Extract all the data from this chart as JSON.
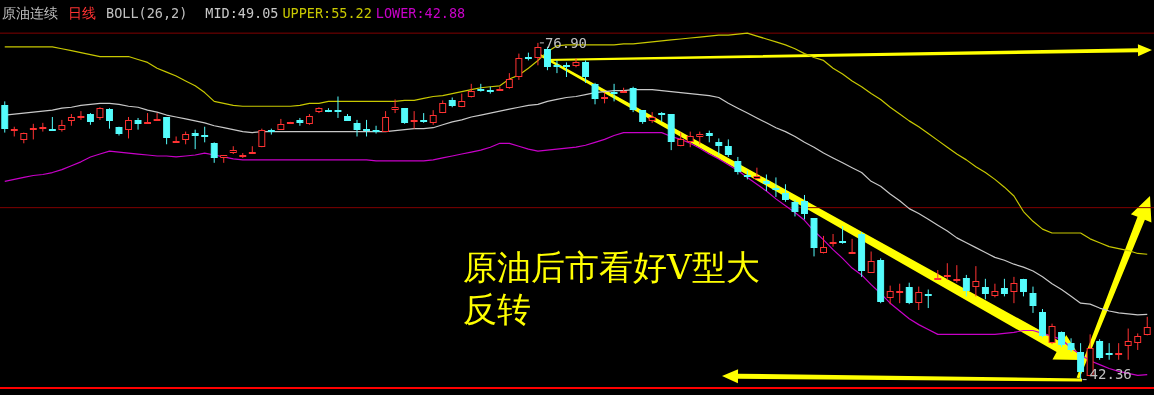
{
  "chart_data": {
    "type": "candlestick",
    "title": "原油连续",
    "subtitle": "日线",
    "legend_title": "BOLL(26,2)",
    "ylim": [
      41.5,
      81.3
    ],
    "categories": [
      null,
      null,
      null,
      null,
      null,
      null,
      null,
      null,
      null,
      null,
      null,
      null,
      null,
      null,
      null,
      null,
      null,
      null,
      null,
      null,
      null,
      null,
      null,
      null,
      null,
      null,
      null,
      null,
      null,
      null,
      null,
      null,
      null,
      null,
      null,
      null,
      null,
      null,
      null,
      null,
      null,
      null,
      null,
      null,
      null,
      null,
      null,
      null,
      null,
      null,
      null,
      null,
      null,
      null,
      null,
      null,
      null,
      null,
      null,
      null,
      null,
      null,
      null,
      null,
      null,
      null,
      null,
      null,
      null,
      null,
      null,
      null,
      null,
      null,
      null,
      null,
      null,
      null,
      null,
      null,
      null,
      null,
      null,
      null,
      null,
      null,
      null,
      null,
      null,
      null,
      null,
      null,
      null,
      null,
      null,
      null,
      null,
      null,
      null,
      null,
      null,
      null,
      null,
      null,
      null,
      null,
      null,
      null,
      null,
      null,
      null,
      null,
      null,
      null,
      null,
      null,
      null,
      null,
      null,
      null,
      null
    ],
    "ohlc": [
      [
        70.5,
        70.9,
        67.7,
        68.1
      ],
      [
        68.05,
        68.3,
        67.3,
        68.1
      ],
      [
        66.9,
        67.7,
        66.6,
        67.7
      ],
      [
        68.15,
        68.6,
        67.0,
        68.2
      ],
      [
        68.25,
        68.7,
        67.8,
        68.3
      ],
      [
        68.1,
        69.3,
        68.0,
        68.05
      ],
      [
        68.0,
        69.0,
        67.8,
        68.5
      ],
      [
        68.9,
        69.6,
        68.4,
        69.3
      ],
      [
        69.35,
        69.9,
        69.0,
        69.4
      ],
      [
        69.6,
        69.7,
        68.5,
        68.8
      ],
      [
        69.2,
        70.3,
        69.0,
        70.2
      ],
      [
        70.1,
        70.2,
        68.1,
        68.9
      ],
      [
        68.3,
        68.3,
        67.4,
        67.6
      ],
      [
        68.0,
        69.3,
        67.1,
        69.0
      ],
      [
        69.0,
        69.2,
        68.0,
        68.6
      ],
      [
        68.7,
        69.7,
        68.7,
        68.8
      ],
      [
        69.05,
        69.7,
        69.0,
        69.1
      ],
      [
        69.3,
        69.3,
        66.5,
        67.1
      ],
      [
        66.75,
        67.3,
        66.7,
        66.8
      ],
      [
        66.9,
        67.8,
        66.5,
        67.6
      ],
      [
        67.7,
        68.0,
        66.0,
        67.4
      ],
      [
        67.5,
        68.3,
        66.7,
        67.2
      ],
      [
        66.6,
        66.7,
        64.6,
        65.1
      ],
      [
        65.1,
        65.4,
        64.6,
        65.4
      ],
      [
        65.6,
        66.3,
        65.5,
        65.9
      ],
      [
        65.35,
        65.6,
        65.1,
        65.4
      ],
      [
        65.5,
        66.3,
        65.5,
        65.7
      ],
      [
        66.2,
        68.1,
        66.2,
        68.0
      ],
      [
        68.0,
        68.1,
        67.5,
        67.95
      ],
      [
        68.0,
        69.1,
        68.0,
        68.6
      ],
      [
        68.75,
        68.8,
        68.6,
        68.8
      ],
      [
        69.0,
        69.2,
        68.4,
        68.7
      ],
      [
        68.6,
        69.6,
        68.5,
        69.4
      ],
      [
        69.8,
        70.3,
        69.7,
        70.2
      ],
      [
        70.0,
        70.2,
        69.8,
        69.95
      ],
      [
        70.0,
        71.4,
        69.2,
        69.8
      ],
      [
        69.4,
        69.6,
        68.9,
        68.9
      ],
      [
        68.7,
        69.0,
        67.3,
        68.0
      ],
      [
        68.1,
        69.0,
        67.3,
        68.05
      ],
      [
        68.0,
        68.4,
        67.6,
        67.95
      ],
      [
        67.8,
        69.9,
        67.8,
        69.3
      ],
      [
        70.0,
        71.1,
        69.7,
        70.3
      ],
      [
        70.2,
        70.2,
        68.6,
        68.7
      ],
      [
        68.95,
        69.9,
        68.1,
        69.0
      ],
      [
        69.0,
        69.7,
        68.7,
        68.95
      ],
      [
        68.7,
        70.0,
        68.5,
        69.5
      ],
      [
        69.7,
        71.0,
        69.7,
        70.7
      ],
      [
        71.0,
        71.3,
        70.3,
        70.4
      ],
      [
        70.3,
        71.7,
        70.3,
        70.9
      ],
      [
        71.3,
        72.7,
        71.3,
        72.0
      ],
      [
        72.2,
        72.7,
        71.9,
        72.15
      ],
      [
        72.1,
        72.4,
        71.7,
        72.05
      ],
      [
        72.1,
        72.4,
        72.0,
        72.2
      ],
      [
        72.3,
        73.8,
        72.2,
        73.2
      ],
      [
        73.4,
        75.8,
        73.1,
        75.3
      ],
      [
        75.5,
        75.9,
        75.1,
        75.45
      ],
      [
        75.3,
        76.9,
        74.6,
        76.5
      ],
      [
        76.3,
        76.5,
        74.1,
        74.4
      ],
      [
        74.65,
        75.1,
        73.8,
        74.6
      ],
      [
        74.6,
        74.9,
        73.4,
        74.55
      ],
      [
        74.5,
        75.3,
        74.4,
        74.9
      ],
      [
        74.9,
        75.1,
        72.8,
        73.4
      ],
      [
        72.7,
        72.8,
        70.6,
        71.1
      ],
      [
        71.2,
        71.8,
        70.7,
        71.4
      ],
      [
        71.9,
        72.7,
        70.9,
        71.85
      ],
      [
        71.8,
        72.3,
        71.8,
        72.0
      ],
      [
        72.3,
        72.4,
        69.8,
        70.0
      ],
      [
        70.0,
        70.0,
        68.6,
        68.8
      ],
      [
        68.9,
        69.8,
        68.7,
        69.3
      ],
      [
        69.7,
        69.8,
        68.8,
        69.65
      ],
      [
        69.6,
        69.6,
        65.9,
        66.7
      ],
      [
        66.3,
        67.7,
        66.3,
        67.0
      ],
      [
        66.7,
        67.8,
        66.2,
        67.3
      ],
      [
        67.2,
        67.8,
        66.5,
        67.6
      ],
      [
        67.7,
        67.9,
        66.7,
        67.3
      ],
      [
        66.7,
        67.1,
        65.4,
        66.3
      ],
      [
        66.3,
        67.0,
        65.2,
        65.4
      ],
      [
        64.8,
        65.2,
        63.4,
        63.7
      ],
      [
        63.4,
        63.8,
        62.9,
        63.35
      ],
      [
        62.9,
        64.1,
        62.9,
        63.2
      ],
      [
        62.7,
        63.4,
        61.7,
        62.4
      ],
      [
        62.0,
        63.1,
        61.1,
        61.95
      ],
      [
        61.5,
        62.4,
        60.6,
        60.8
      ],
      [
        60.6,
        60.8,
        59.1,
        59.6
      ],
      [
        60.7,
        61.3,
        58.8,
        59.3
      ],
      [
        58.9,
        58.9,
        55.0,
        55.9
      ],
      [
        55.3,
        57.1,
        55.3,
        56.0
      ],
      [
        56.3,
        57.3,
        56.0,
        56.5
      ],
      [
        56.6,
        58.1,
        56.3,
        56.55
      ],
      [
        55.35,
        56.8,
        55.3,
        55.4
      ],
      [
        57.3,
        57.5,
        52.9,
        53.5
      ],
      [
        53.3,
        55.5,
        53.3,
        54.5
      ],
      [
        54.6,
        54.8,
        50.2,
        50.3
      ],
      [
        50.7,
        52.0,
        50.1,
        51.4
      ],
      [
        51.35,
        52.2,
        50.2,
        51.4
      ],
      [
        51.9,
        52.3,
        50.1,
        50.2
      ],
      [
        50.2,
        51.9,
        49.5,
        51.3
      ],
      [
        51.1,
        51.6,
        49.7,
        51.05
      ],
      [
        52.6,
        53.6,
        52.6,
        52.8
      ],
      [
        53.05,
        54.3,
        52.6,
        53.1
      ],
      [
        52.65,
        54.1,
        52.3,
        52.7
      ],
      [
        52.8,
        53.1,
        50.9,
        51.5
      ],
      [
        51.9,
        54.0,
        50.9,
        52.5
      ],
      [
        51.9,
        52.7,
        50.6,
        51.1
      ],
      [
        50.9,
        52.2,
        50.8,
        51.4
      ],
      [
        51.8,
        52.7,
        50.9,
        51.1
      ],
      [
        51.3,
        52.9,
        50.2,
        52.3
      ],
      [
        52.7,
        52.7,
        50.9,
        51.3
      ],
      [
        51.2,
        51.9,
        49.2,
        49.9
      ],
      [
        49.3,
        49.6,
        46.7,
        46.8
      ],
      [
        46.1,
        48.1,
        46.0,
        47.9
      ],
      [
        47.2,
        47.3,
        45.7,
        45.9
      ],
      [
        46.1,
        46.6,
        45.2,
        45.4
      ],
      [
        45.2,
        46.1,
        42.36,
        43.1
      ],
      [
        42.7,
        47.0,
        42.7,
        45.6
      ],
      [
        46.3,
        46.5,
        44.4,
        44.6
      ],
      [
        45.1,
        46.1,
        44.4,
        45.05
      ],
      [
        45.05,
        46.1,
        44.4,
        45.1
      ],
      [
        45.8,
        47.6,
        44.4,
        46.3
      ],
      [
        46.1,
        47.1,
        45.4,
        46.8
      ],
      [
        46.9,
        48.8,
        46.9,
        47.8
      ]
    ],
    "series": [
      {
        "type": "line",
        "name": "MID:49.05",
        "color": "#c8c8c8",
        "values": [
          69.5,
          69.6,
          69.7,
          69.8,
          69.9,
          70.0,
          70.2,
          70.3,
          70.5,
          70.6,
          70.7,
          70.7,
          70.6,
          70.4,
          70.3,
          70.0,
          69.8,
          69.5,
          69.3,
          69.1,
          68.9,
          68.7,
          68.4,
          68.2,
          68.0,
          67.8,
          67.7,
          67.8,
          67.8,
          67.8,
          67.8,
          67.8,
          67.8,
          67.8,
          67.8,
          67.8,
          67.8,
          67.8,
          67.8,
          67.8,
          67.8,
          67.9,
          68.0,
          68.1,
          68.1,
          68.2,
          68.5,
          68.8,
          69.0,
          69.3,
          69.5,
          69.7,
          69.9,
          70.1,
          70.3,
          70.5,
          70.6,
          70.9,
          71.1,
          71.3,
          71.4,
          71.6,
          71.8,
          71.9,
          72.0,
          72.0,
          72.1,
          72.1,
          72.1,
          72.0,
          71.9,
          71.8,
          71.7,
          71.6,
          71.5,
          71.3,
          70.7,
          70.2,
          69.7,
          69.2,
          68.7,
          68.2,
          67.8,
          67.3,
          66.7,
          66.2,
          65.6,
          65.1,
          64.6,
          64.1,
          63.6,
          62.7,
          62.2,
          61.4,
          60.7,
          59.9,
          59.4,
          58.8,
          58.2,
          57.6,
          56.9,
          56.4,
          55.9,
          55.4,
          54.9,
          54.6,
          54.2,
          53.9,
          53.5,
          52.9,
          52.2,
          51.6,
          50.9,
          50.2,
          50.1,
          49.7,
          49.4,
          49.2,
          49.1,
          49.0,
          49.05
        ]
      },
      {
        "type": "line",
        "name": "UPPER:55.22",
        "color": "#c8c800",
        "values": [
          76.5,
          76.5,
          76.5,
          76.5,
          76.5,
          76.5,
          76.3,
          76.1,
          75.9,
          75.7,
          75.5,
          75.5,
          75.5,
          75.5,
          75.2,
          74.9,
          74.3,
          73.9,
          73.5,
          73.0,
          72.5,
          71.8,
          70.9,
          70.7,
          70.5,
          70.4,
          70.4,
          70.4,
          70.4,
          70.4,
          70.4,
          70.5,
          70.7,
          70.7,
          70.9,
          70.9,
          70.9,
          70.9,
          70.9,
          70.9,
          70.9,
          70.9,
          71.0,
          71.0,
          71.2,
          71.4,
          71.5,
          71.7,
          71.9,
          72.1,
          72.3,
          72.4,
          72.5,
          73.2,
          73.6,
          74.3,
          75.1,
          76.0,
          76.6,
          76.7,
          76.7,
          76.7,
          76.7,
          76.7,
          76.7,
          76.8,
          76.8,
          76.9,
          77.0,
          77.1,
          77.2,
          77.3,
          77.4,
          77.5,
          77.6,
          77.7,
          77.7,
          77.8,
          77.9,
          77.6,
          77.3,
          77.0,
          76.7,
          76.3,
          75.8,
          75.4,
          75.1,
          74.3,
          73.7,
          73.0,
          72.4,
          71.7,
          71.1,
          70.3,
          69.6,
          68.9,
          68.3,
          67.6,
          66.9,
          66.2,
          65.5,
          64.9,
          64.2,
          63.6,
          62.9,
          62.1,
          61.2,
          59.6,
          58.6,
          57.8,
          57.4,
          57.4,
          57.4,
          57.4,
          56.8,
          56.4,
          56.0,
          55.8,
          55.6,
          55.3,
          55.22
        ]
      },
      {
        "type": "line",
        "name": "LOWER:42.88",
        "color": "#c800c8",
        "values": [
          62.7,
          62.9,
          63.1,
          63.3,
          63.4,
          63.6,
          63.9,
          64.3,
          64.7,
          65.2,
          65.5,
          65.8,
          65.7,
          65.6,
          65.5,
          65.4,
          65.3,
          65.3,
          65.2,
          65.3,
          65.4,
          65.6,
          65.4,
          65.2,
          65.0,
          64.9,
          64.9,
          64.9,
          64.9,
          64.9,
          64.9,
          64.9,
          64.9,
          64.9,
          64.9,
          64.9,
          64.9,
          64.9,
          64.9,
          64.8,
          64.8,
          64.8,
          64.8,
          64.8,
          64.8,
          64.9,
          65.1,
          65.3,
          65.5,
          65.7,
          65.9,
          66.2,
          66.6,
          66.6,
          66.3,
          66.0,
          65.8,
          65.9,
          66.0,
          66.1,
          66.2,
          66.4,
          66.7,
          67.0,
          67.4,
          67.7,
          67.7,
          67.7,
          67.7,
          67.7,
          67.3,
          67.0,
          66.6,
          66.1,
          65.5,
          65.0,
          64.4,
          63.8,
          63.1,
          62.4,
          61.7,
          60.9,
          60.2,
          59.5,
          58.7,
          57.6,
          56.7,
          55.7,
          54.8,
          53.8,
          53.1,
          52.1,
          51.2,
          50.2,
          49.4,
          48.6,
          48.0,
          47.5,
          47.0,
          47.0,
          47.0,
          47.0,
          47.0,
          47.0,
          47.0,
          47.1,
          47.2,
          47.4,
          47.4,
          47.1,
          46.8,
          46.5,
          45.6,
          44.9,
          44.3,
          43.9,
          43.5,
          43.2,
          43.0,
          42.8,
          42.88
        ]
      }
    ],
    "ref_lines": [
      {
        "axis": "y",
        "value": 77.9,
        "color": "#800000"
      },
      {
        "axis": "y",
        "value": 60.0,
        "color": "#800000"
      }
    ],
    "annotations": [
      {
        "text": "76.90",
        "y": 76.9
      },
      "42.36",
      "原油后市看好V型大反转"
    ]
  }
}
